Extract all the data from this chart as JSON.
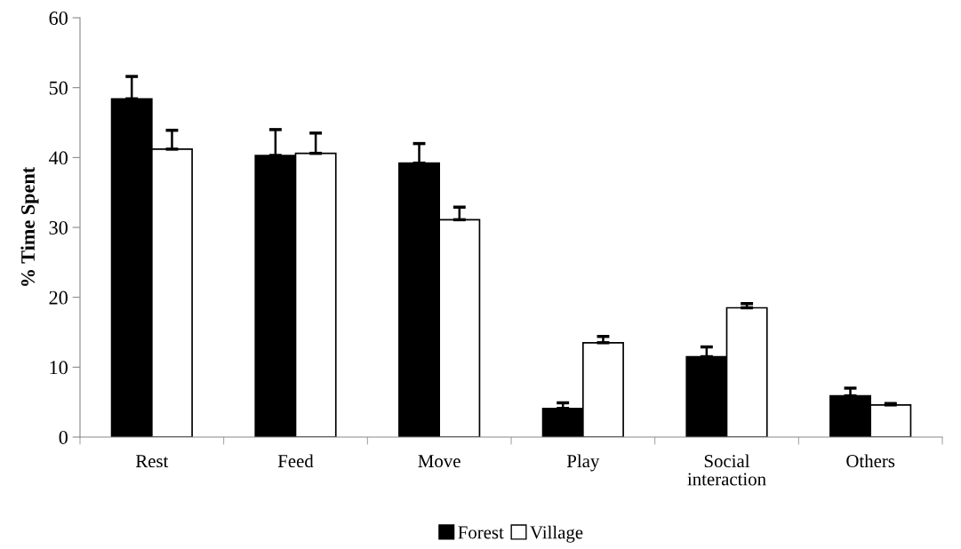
{
  "chart_data": {
    "type": "bar",
    "ylabel": "% Time Spent",
    "categories": [
      "Rest",
      "Feed",
      "Move",
      "Play",
      "Social\ninteraction",
      "Others"
    ],
    "series": [
      {
        "name": "Forest",
        "color": "#000000",
        "values": [
          48.4,
          40.3,
          39.2,
          4.1,
          11.5,
          5.9
        ],
        "errors": [
          [
            48.4,
            51.6
          ],
          [
            40.3,
            44.0
          ],
          [
            39.2,
            42.0
          ],
          [
            4.1,
            4.9
          ],
          [
            11.5,
            12.9
          ],
          [
            5.9,
            7.0
          ]
        ]
      },
      {
        "name": "Village",
        "color": "#ffffff",
        "values": [
          41.2,
          40.6,
          31.1,
          13.5,
          18.5,
          4.6
        ],
        "errors": [
          [
            41.2,
            43.9
          ],
          [
            40.6,
            43.5
          ],
          [
            31.1,
            32.9
          ],
          [
            13.5,
            14.4
          ],
          [
            18.5,
            19.1
          ],
          [
            4.6,
            4.8
          ]
        ]
      }
    ],
    "ylim": [
      0,
      60
    ],
    "yticks": [
      0,
      10,
      20,
      30,
      40,
      50,
      60
    ],
    "grid": false,
    "legend": "bottom"
  }
}
